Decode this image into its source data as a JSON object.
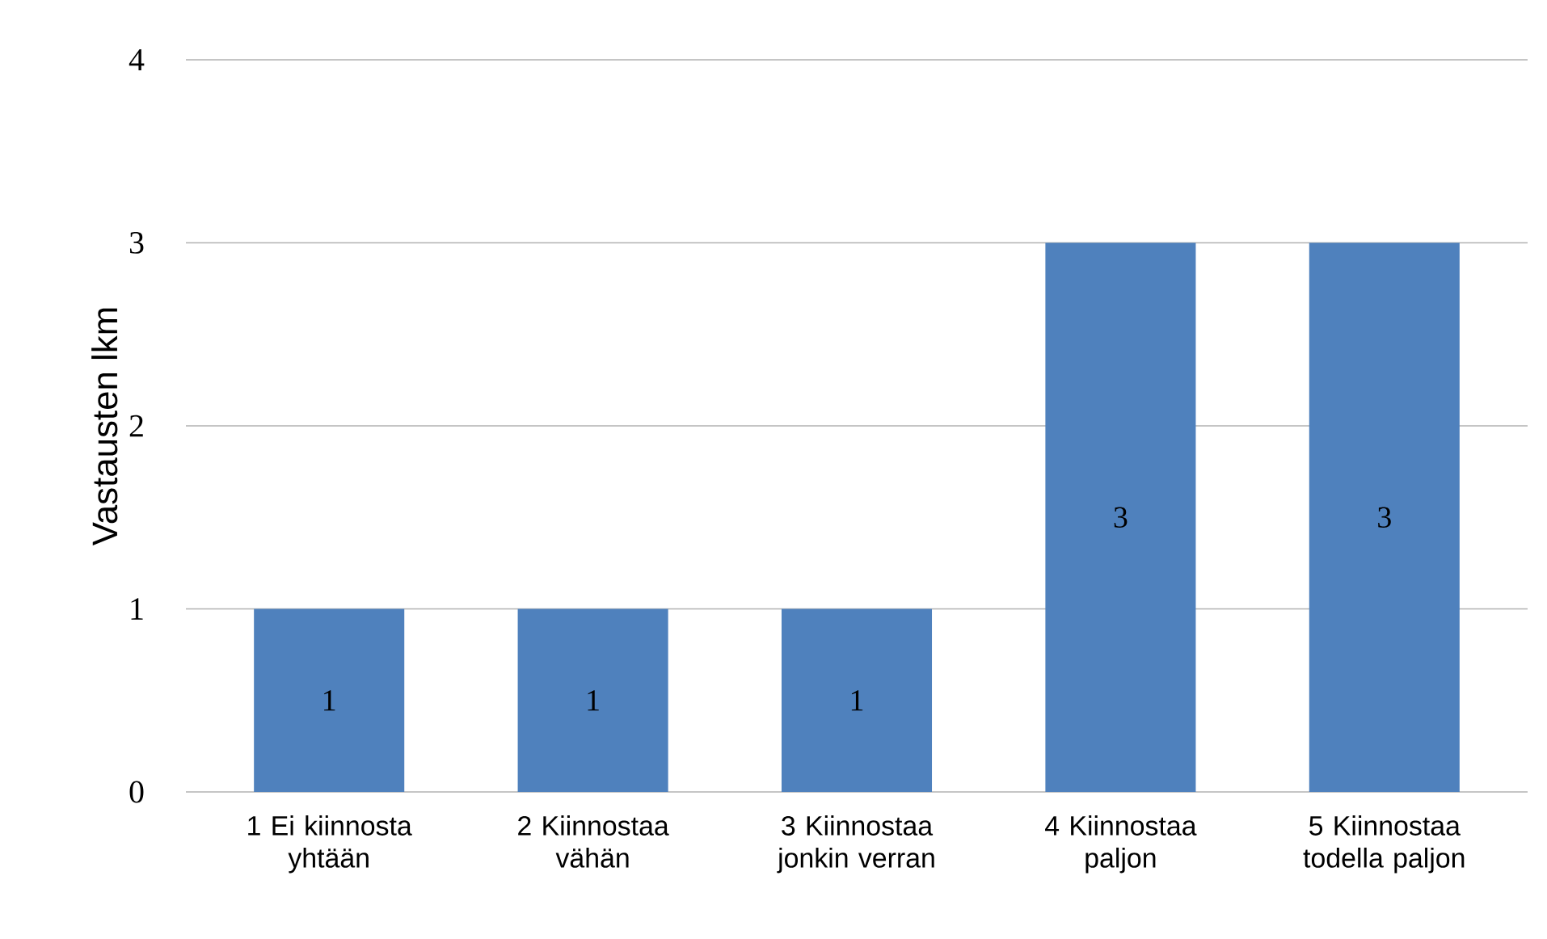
{
  "chart_data": {
    "type": "bar",
    "ylabel": "Vastausten lkm",
    "categories": [
      "1 Ei kiinnosta yhtään",
      "2 Kiinnostaa vähän",
      "3 Kiinnostaa jonkin verran",
      "4 Kiinnostaa paljon",
      "5 Kiinnostaa todella paljon"
    ],
    "values": [
      1,
      1,
      1,
      3,
      3
    ],
    "color": "#4f81bd",
    "ylim": [
      0,
      4
    ],
    "yticks": [
      0,
      1,
      2,
      3,
      4
    ],
    "grid": "y",
    "data_labels": true
  }
}
